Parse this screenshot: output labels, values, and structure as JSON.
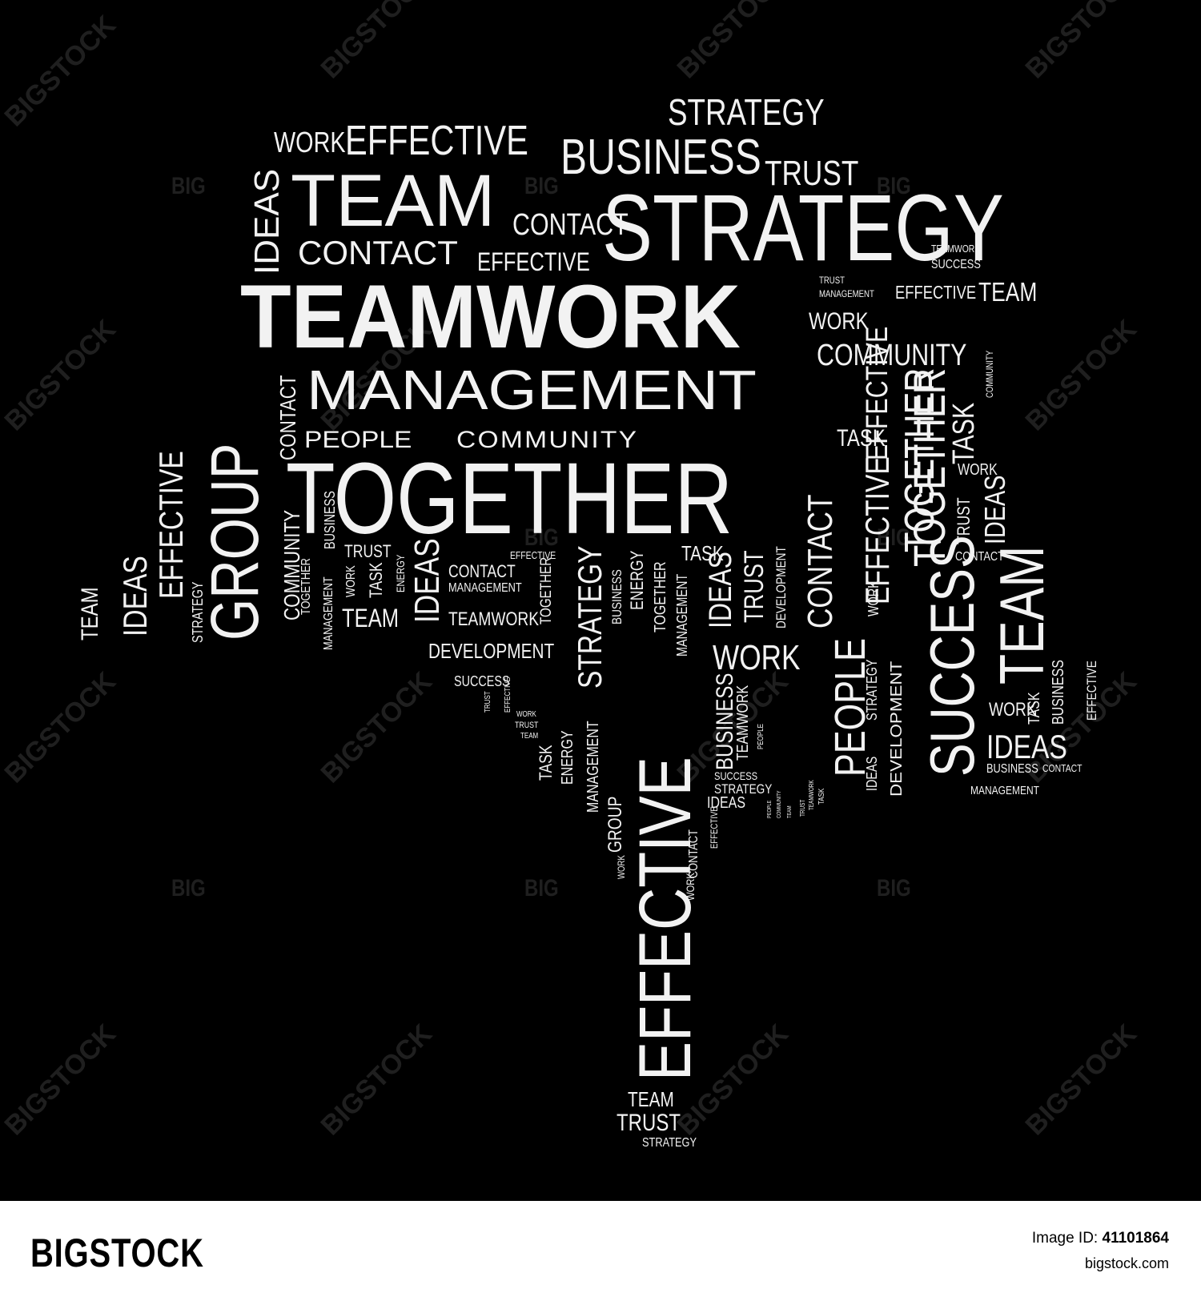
{
  "words": {
    "w001": "STRATEGY",
    "w002": "WORK",
    "w003": "EFFECTIVE",
    "w004": "BUSINESS",
    "w005": "TRUST",
    "w006": "IDEAS",
    "w007": "TEAM",
    "w008": "CONTACT",
    "w009": "STRATEGY",
    "w010": "TEAMWORK",
    "w011": "SUCCESS",
    "w012": "CONTACT",
    "w013": "EFFECTIVE",
    "w014": "TRUST",
    "w015": "MANAGEMENT",
    "w016": "EFFECTIVE",
    "w017": "TEAM",
    "w018": "TEAMWORK",
    "w019": "WORK",
    "w020": "COMMUNITY",
    "w021": "COMMUNITY",
    "w022": "GROUP",
    "w023": "CONTACT",
    "w024": "MANAGEMENT",
    "w025": "TOGETHER",
    "w026": "TASK",
    "w027": "PEOPLE",
    "w028": "COMMUNITY",
    "w029": "TASK",
    "w030": "EFFECTIVE",
    "w031": "TOGETHER",
    "w032": "WORK",
    "w033": "TRUST",
    "w034": "IDEAS",
    "w035": "CONTACT",
    "w036": "COMMUNITY",
    "w037": "IDEAS",
    "w038": "EFFECTIVE",
    "w039": "TEAM",
    "w040": "STRATEGY",
    "w041": "COMMUNITY",
    "w042": "TOGETHER",
    "w043": "MANAGEMENT",
    "w044": "BUSINESS",
    "w045": "TRUST",
    "w046": "WORK",
    "w047": "TASK",
    "w048": "ENERGY",
    "w049": "TEAM",
    "w050": "IDEAS",
    "w051": "CONTACT",
    "w052": "MANAGEMENT",
    "w053": "TEAMWORK",
    "w054": "EFFECTIVE",
    "w055": "TOGETHER",
    "w056": "STRATEGY",
    "w057": "BUSINESS",
    "w058": "ENERGY",
    "w059": "TOGETHER",
    "w060": "TASK",
    "w061": "MANAGEMENT",
    "w062": "IDEAS",
    "w063": "TRUST",
    "w064": "DEVELOPMENT",
    "w065": "CONTACT",
    "w066": "EFFECTIVE",
    "w067": "DEVELOPMENT",
    "w068": "WORK",
    "w069": "SUCCESS",
    "w070": "TEAM",
    "w071": "SUCCESS",
    "w072": "TRUST",
    "w073": "EFFECTIVE",
    "w074": "WORK",
    "w075": "TRUST",
    "w076": "TEAM",
    "w077": "TASK",
    "w078": "ENERGY",
    "w079": "MANAGEMENT",
    "w080": "GROUP",
    "w081": "WORK",
    "w082": "EFFECTIVE",
    "w083": "CONTACT",
    "w084": "WORK",
    "w085": "EFFECTIVE",
    "w086": "BUSINESS",
    "w087": "TEAMWORK",
    "w088": "PEOPLE",
    "w089": "SUCCESS",
    "w090": "STRATEGY",
    "w091": "IDEAS",
    "w092": "PEOPLE",
    "w093": "COMMUNITY",
    "w094": "TEAM",
    "w095": "TRUST",
    "w096": "TEAMWORK",
    "w097": "TASK",
    "w098": "PEOPLE",
    "w099": "IDEAS",
    "w100": "STRATEGY",
    "w101": "WORK",
    "w102": "DEVELOPMENT",
    "w103": "WORK",
    "w104": "TASK",
    "w105": "BUSINESS",
    "w106": "EFFECTIVE",
    "w107": "IDEAS",
    "w108": "BUSINESS",
    "w109": "CONTACT",
    "w110": "MANAGEMENT",
    "w111": "TEAM",
    "w112": "TRUST",
    "w113": "STRATEGY",
    "w114": "TEAM",
    "w115": "IDEAS",
    "w116": "EFFECTIVE",
    "w117": "STRATEGY"
  },
  "watermark": {
    "repeated": "BIGSTOCK",
    "small": "BIG"
  },
  "footer": {
    "logo": "BIGSTOCK",
    "image_id_label": "Image ID:",
    "image_id": "41101864",
    "site": "bigstock.com"
  }
}
